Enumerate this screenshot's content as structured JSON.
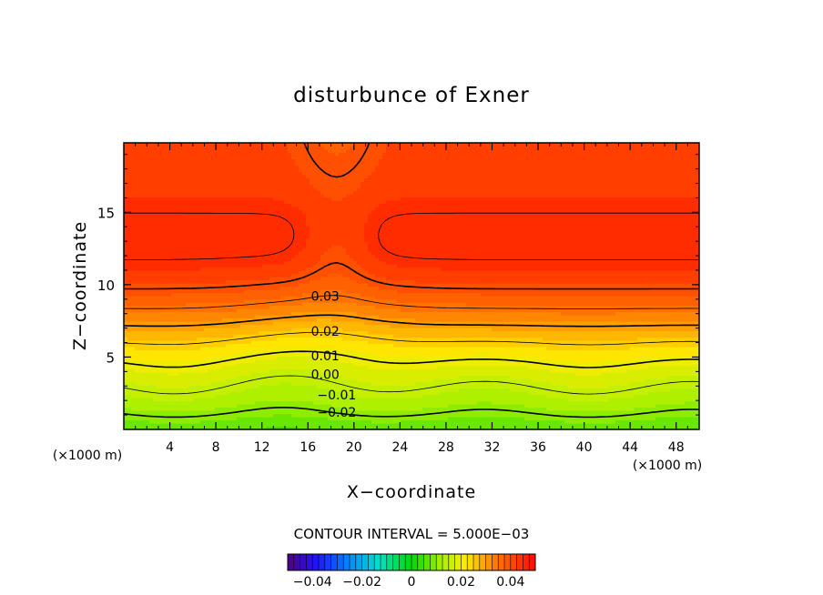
{
  "chart_data": {
    "type": "contour",
    "title": "disturbunce of Exner",
    "xlabel": "X−coordinate",
    "ylabel": "Z−coordinate",
    "x_unit_left": "(×1000 m)",
    "x_unit_right": "(×1000 m)",
    "xlim": [
      0,
      50
    ],
    "ylim": [
      0,
      19.8
    ],
    "x_ticks": [
      4,
      8,
      12,
      16,
      20,
      24,
      28,
      32,
      36,
      40,
      44,
      48
    ],
    "x_tick_labels": [
      "4",
      "8",
      "12",
      "16",
      "20",
      "24",
      "28",
      "32",
      "36",
      "40",
      "44",
      "48"
    ],
    "y_ticks": [
      5,
      10,
      15
    ],
    "y_tick_labels": [
      "5",
      "10",
      "15"
    ],
    "contour_interval_text": "CONTOUR INTERVAL = 5.000E−03",
    "contour_level_labels": [
      {
        "text": "0.03",
        "x": 17.5,
        "y": 9.2
      },
      {
        "text": "0.02",
        "x": 17.5,
        "y": 6.8
      },
      {
        "text": "0.01",
        "x": 17.5,
        "y": 5.1
      },
      {
        "text": "0.00",
        "x": 17.5,
        "y": 3.8
      },
      {
        "text": "−0.01",
        "x": 18.5,
        "y": 2.4
      },
      {
        "text": "−0.02",
        "x": 18.5,
        "y": 1.2
      }
    ],
    "colorbar": {
      "range": [
        -0.05,
        0.05
      ],
      "tick_values": [
        -0.04,
        -0.02,
        0,
        0.02,
        0.04
      ],
      "tick_labels": [
        "−0.04",
        "−0.02",
        "0",
        "0.02",
        "0.04"
      ]
    },
    "colors": {
      "max": "#ff1400",
      "zero": "#00d800",
      "min": "#1a4cff"
    }
  }
}
